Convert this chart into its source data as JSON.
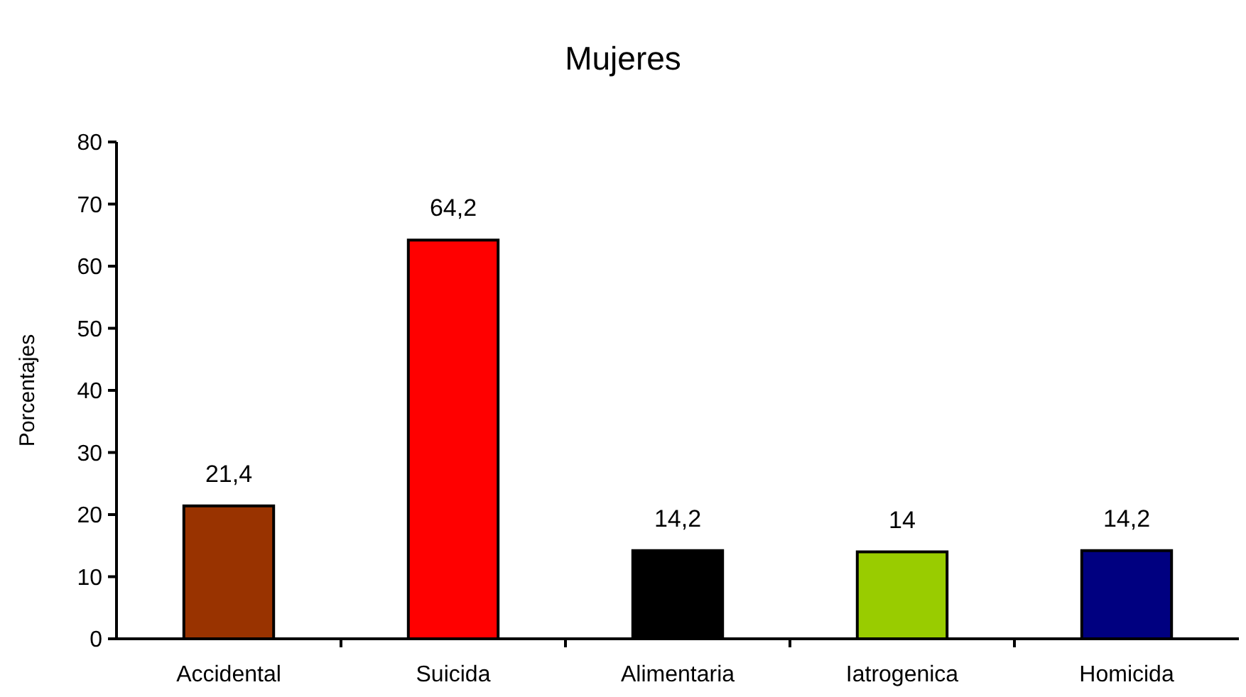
{
  "chart_data": {
    "type": "bar",
    "title": "Mujeres",
    "ylabel": "Porcentajes",
    "categories": [
      "Accidental",
      "Suicida",
      "Alimentaria",
      "Iatrogenica",
      "Homicida"
    ],
    "values": [
      21.4,
      64.2,
      14.2,
      14,
      14.2
    ],
    "colors": [
      "#993300",
      "#ff0000",
      "#000000",
      "#99cc00",
      "#000080"
    ],
    "value_labels": [
      "21,4",
      "64,2",
      "14,2",
      "14",
      "14,2"
    ],
    "ylim": [
      0,
      80
    ],
    "yticks": [
      0,
      10,
      20,
      30,
      40,
      50,
      60,
      70,
      80
    ],
    "grid": false
  }
}
